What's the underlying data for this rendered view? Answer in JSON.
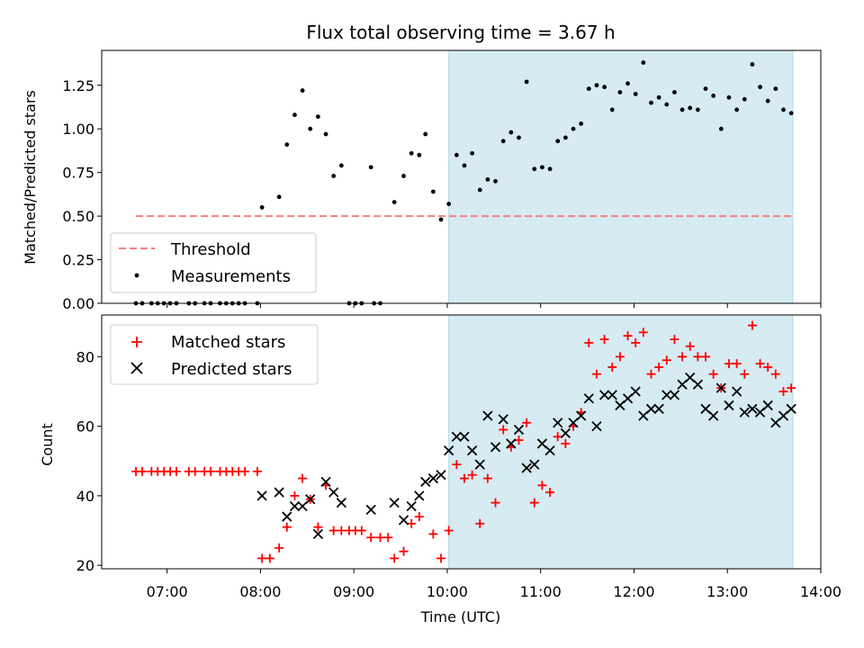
{
  "title": "Flux total observing time = 3.67 h",
  "xlabel": "Time (UTC)",
  "x_ticks": [
    "07:00",
    "08:00",
    "09:00",
    "10:00",
    "11:00",
    "12:00",
    "13:00",
    "14:00"
  ],
  "colors": {
    "threshold": "#f77f7f",
    "measurements": "#000000",
    "matched": "#ff0000",
    "predicted": "#000000",
    "shade": "#add8e6"
  },
  "chart_data": [
    {
      "type": "scatter",
      "ylabel": "Matched/Predicted stars",
      "ylim": [
        0,
        1.45
      ],
      "xlim": [
        "06:18",
        "14:00"
      ],
      "shaded_x": [
        "10:01",
        "13:42"
      ],
      "y_ticks": [
        "0.00",
        "0.25",
        "0.50",
        "0.75",
        "1.00",
        "1.25"
      ],
      "legend_position": "lower-left",
      "threshold": {
        "name": "Threshold",
        "value": 0.5,
        "x": [
          "06:40",
          "13:42"
        ]
      },
      "series": [
        {
          "name": "Measurements",
          "marker": "dot",
          "points": [
            [
              "06:40",
              0
            ],
            [
              "06:44",
              0
            ],
            [
              "06:50",
              0
            ],
            [
              "06:54",
              0
            ],
            [
              "06:58",
              0
            ],
            [
              "07:02",
              0
            ],
            [
              "07:06",
              0
            ],
            [
              "07:14",
              0
            ],
            [
              "07:18",
              0
            ],
            [
              "07:24",
              0
            ],
            [
              "07:28",
              0
            ],
            [
              "07:34",
              0
            ],
            [
              "07:38",
              0
            ],
            [
              "07:42",
              0
            ],
            [
              "07:46",
              0
            ],
            [
              "07:50",
              0
            ],
            [
              "07:58",
              0
            ],
            [
              "08:01",
              0.55
            ],
            [
              "08:12",
              0.61
            ],
            [
              "08:17",
              0.91
            ],
            [
              "08:22",
              1.08
            ],
            [
              "08:27",
              1.22
            ],
            [
              "08:32",
              1.0
            ],
            [
              "08:37",
              1.07
            ],
            [
              "08:42",
              0.97
            ],
            [
              "08:47",
              0.73
            ],
            [
              "08:52",
              0.79
            ],
            [
              "08:57",
              0
            ],
            [
              "09:01",
              0
            ],
            [
              "09:05",
              0
            ],
            [
              "09:13",
              0
            ],
            [
              "09:17",
              0
            ],
            [
              "09:11",
              0.78
            ],
            [
              "09:26",
              0.58
            ],
            [
              "09:32",
              0.73
            ],
            [
              "09:37",
              0.86
            ],
            [
              "09:42",
              0.85
            ],
            [
              "09:46",
              0.97
            ],
            [
              "09:51",
              0.64
            ],
            [
              "09:56",
              0.48
            ],
            [
              "10:01",
              0.57
            ],
            [
              "10:06",
              0.85
            ],
            [
              "10:11",
              0.79
            ],
            [
              "10:16",
              0.86
            ],
            [
              "10:21",
              0.65
            ],
            [
              "10:26",
              0.71
            ],
            [
              "10:31",
              0.7
            ],
            [
              "10:36",
              0.93
            ],
            [
              "10:41",
              0.98
            ],
            [
              "10:46",
              0.95
            ],
            [
              "10:51",
              1.27
            ],
            [
              "10:56",
              0.77
            ],
            [
              "11:01",
              0.78
            ],
            [
              "11:06",
              0.77
            ],
            [
              "11:11",
              0.93
            ],
            [
              "11:16",
              0.95
            ],
            [
              "11:21",
              1.0
            ],
            [
              "11:26",
              1.03
            ],
            [
              "11:31",
              1.23
            ],
            [
              "11:36",
              1.25
            ],
            [
              "11:41",
              1.24
            ],
            [
              "11:46",
              1.11
            ],
            [
              "11:51",
              1.21
            ],
            [
              "11:56",
              1.26
            ],
            [
              "12:01",
              1.2
            ],
            [
              "12:06",
              1.38
            ],
            [
              "12:11",
              1.15
            ],
            [
              "12:16",
              1.18
            ],
            [
              "12:21",
              1.14
            ],
            [
              "12:26",
              1.21
            ],
            [
              "12:31",
              1.11
            ],
            [
              "12:36",
              1.12
            ],
            [
              "12:41",
              1.11
            ],
            [
              "12:46",
              1.23
            ],
            [
              "12:51",
              1.19
            ],
            [
              "12:56",
              1.0
            ],
            [
              "13:01",
              1.18
            ],
            [
              "13:06",
              1.11
            ],
            [
              "13:11",
              1.17
            ],
            [
              "13:16",
              1.37
            ],
            [
              "13:21",
              1.24
            ],
            [
              "13:26",
              1.16
            ],
            [
              "13:31",
              1.23
            ],
            [
              "13:36",
              1.11
            ],
            [
              "13:41",
              1.09
            ]
          ]
        }
      ]
    },
    {
      "type": "scatter",
      "ylabel": "Count",
      "ylim": [
        19,
        92
      ],
      "xlim": [
        "06:18",
        "14:00"
      ],
      "shaded_x": [
        "10:01",
        "13:42"
      ],
      "y_ticks": [
        "20",
        "40",
        "60",
        "80"
      ],
      "legend_position": "upper-left",
      "series": [
        {
          "name": "Matched stars",
          "marker": "plus",
          "points": [
            [
              "06:40",
              47
            ],
            [
              "06:44",
              47
            ],
            [
              "06:50",
              47
            ],
            [
              "06:54",
              47
            ],
            [
              "06:58",
              47
            ],
            [
              "07:02",
              47
            ],
            [
              "07:06",
              47
            ],
            [
              "07:14",
              47
            ],
            [
              "07:18",
              47
            ],
            [
              "07:24",
              47
            ],
            [
              "07:28",
              47
            ],
            [
              "07:34",
              47
            ],
            [
              "07:38",
              47
            ],
            [
              "07:42",
              47
            ],
            [
              "07:46",
              47
            ],
            [
              "07:50",
              47
            ],
            [
              "07:58",
              47
            ],
            [
              "08:01",
              22
            ],
            [
              "08:06",
              22
            ],
            [
              "08:12",
              25
            ],
            [
              "08:17",
              31
            ],
            [
              "08:22",
              40
            ],
            [
              "08:27",
              45
            ],
            [
              "08:32",
              39
            ],
            [
              "08:37",
              31
            ],
            [
              "08:42",
              43
            ],
            [
              "08:47",
              30
            ],
            [
              "08:52",
              30
            ],
            [
              "08:57",
              30
            ],
            [
              "09:01",
              30
            ],
            [
              "09:05",
              30
            ],
            [
              "09:11",
              28
            ],
            [
              "09:17",
              28
            ],
            [
              "09:22",
              28
            ],
            [
              "09:26",
              22
            ],
            [
              "09:32",
              24
            ],
            [
              "09:37",
              32
            ],
            [
              "09:42",
              34
            ],
            [
              "09:51",
              29
            ],
            [
              "09:56",
              22
            ],
            [
              "10:01",
              30
            ],
            [
              "10:06",
              49
            ],
            [
              "10:11",
              45
            ],
            [
              "10:16",
              46
            ],
            [
              "10:21",
              32
            ],
            [
              "10:26",
              45
            ],
            [
              "10:31",
              38
            ],
            [
              "10:36",
              59
            ],
            [
              "10:41",
              54
            ],
            [
              "10:46",
              56
            ],
            [
              "10:51",
              61
            ],
            [
              "10:56",
              38
            ],
            [
              "11:01",
              43
            ],
            [
              "11:06",
              41
            ],
            [
              "11:11",
              57
            ],
            [
              "11:16",
              55
            ],
            [
              "11:21",
              60
            ],
            [
              "11:26",
              64
            ],
            [
              "11:31",
              84
            ],
            [
              "11:36",
              75
            ],
            [
              "11:41",
              85
            ],
            [
              "11:46",
              77
            ],
            [
              "11:51",
              80
            ],
            [
              "11:56",
              86
            ],
            [
              "12:01",
              84
            ],
            [
              "12:06",
              87
            ],
            [
              "12:11",
              75
            ],
            [
              "12:16",
              77
            ],
            [
              "12:21",
              79
            ],
            [
              "12:26",
              85
            ],
            [
              "12:31",
              80
            ],
            [
              "12:36",
              83
            ],
            [
              "12:41",
              80
            ],
            [
              "12:46",
              80
            ],
            [
              "12:51",
              75
            ],
            [
              "12:56",
              71
            ],
            [
              "13:01",
              78
            ],
            [
              "13:06",
              78
            ],
            [
              "13:11",
              75
            ],
            [
              "13:16",
              89
            ],
            [
              "13:21",
              78
            ],
            [
              "13:26",
              77
            ],
            [
              "13:31",
              75
            ],
            [
              "13:36",
              70
            ],
            [
              "13:41",
              71
            ]
          ]
        },
        {
          "name": "Predicted stars",
          "marker": "cross",
          "points": [
            [
              "08:01",
              40
            ],
            [
              "08:12",
              41
            ],
            [
              "08:17",
              34
            ],
            [
              "08:22",
              37
            ],
            [
              "08:27",
              37
            ],
            [
              "08:32",
              39
            ],
            [
              "08:37",
              29
            ],
            [
              "08:42",
              44
            ],
            [
              "08:47",
              41
            ],
            [
              "08:52",
              38
            ],
            [
              "09:11",
              36
            ],
            [
              "09:26",
              38
            ],
            [
              "09:32",
              33
            ],
            [
              "09:37",
              37
            ],
            [
              "09:42",
              40
            ],
            [
              "09:46",
              44
            ],
            [
              "09:51",
              45
            ],
            [
              "09:56",
              46
            ],
            [
              "10:01",
              53
            ],
            [
              "10:06",
              57
            ],
            [
              "10:11",
              57
            ],
            [
              "10:16",
              53
            ],
            [
              "10:21",
              49
            ],
            [
              "10:26",
              63
            ],
            [
              "10:31",
              54
            ],
            [
              "10:36",
              62
            ],
            [
              "10:41",
              55
            ],
            [
              "10:46",
              59
            ],
            [
              "10:51",
              48
            ],
            [
              "10:56",
              49
            ],
            [
              "11:01",
              55
            ],
            [
              "11:06",
              53
            ],
            [
              "11:11",
              61
            ],
            [
              "11:16",
              58
            ],
            [
              "11:21",
              61
            ],
            [
              "11:26",
              63
            ],
            [
              "11:31",
              68
            ],
            [
              "11:36",
              60
            ],
            [
              "11:41",
              69
            ],
            [
              "11:46",
              69
            ],
            [
              "11:51",
              66
            ],
            [
              "11:56",
              68
            ],
            [
              "12:01",
              70
            ],
            [
              "12:06",
              63
            ],
            [
              "12:11",
              65
            ],
            [
              "12:16",
              65
            ],
            [
              "12:21",
              69
            ],
            [
              "12:26",
              69
            ],
            [
              "12:31",
              72
            ],
            [
              "12:36",
              74
            ],
            [
              "12:41",
              72
            ],
            [
              "12:46",
              65
            ],
            [
              "12:51",
              63
            ],
            [
              "12:56",
              71
            ],
            [
              "13:01",
              66
            ],
            [
              "13:06",
              70
            ],
            [
              "13:11",
              64
            ],
            [
              "13:16",
              65
            ],
            [
              "13:21",
              64
            ],
            [
              "13:26",
              66
            ],
            [
              "13:31",
              61
            ],
            [
              "13:36",
              63
            ],
            [
              "13:41",
              65
            ]
          ]
        }
      ]
    }
  ]
}
